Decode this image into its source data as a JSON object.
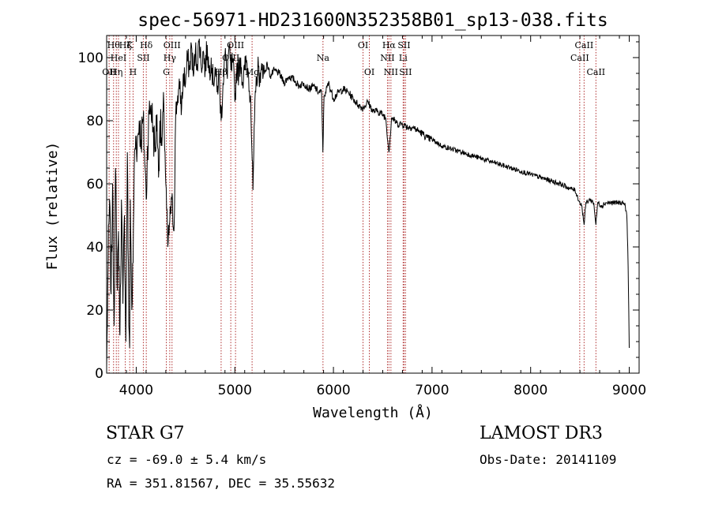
{
  "chart_data": {
    "type": "line",
    "title": "spec-56971-HD231600N352358B01_sp13-038.fits",
    "xlabel": "Wavelength (Å)",
    "ylabel": "Flux (relative)",
    "xlim": [
      3700,
      9100
    ],
    "ylim": [
      0,
      107
    ],
    "xticks": [
      4000,
      5000,
      6000,
      7000,
      8000,
      9000
    ],
    "yticks": [
      0,
      20,
      40,
      60,
      80,
      100
    ],
    "grid": false,
    "line_color": "#000000",
    "marker_color": "#b03030",
    "series": [
      {
        "name": "spectrum",
        "x": [
          3700,
          3715,
          3730,
          3745,
          3760,
          3775,
          3790,
          3805,
          3820,
          3835,
          3850,
          3865,
          3880,
          3895,
          3910,
          3925,
          3933,
          3940,
          3955,
          3968,
          3980,
          3995,
          4010,
          4030,
          4050,
          4070,
          4090,
          4101,
          4115,
          4130,
          4150,
          4170,
          4190,
          4210,
          4226,
          4240,
          4260,
          4280,
          4300,
          4320,
          4340,
          4360,
          4383,
          4400,
          4420,
          4440,
          4460,
          4480,
          4500,
          4520,
          4540,
          4560,
          4580,
          4600,
          4620,
          4640,
          4660,
          4680,
          4700,
          4720,
          4740,
          4760,
          4780,
          4800,
          4820,
          4840,
          4861,
          4880,
          4900,
          4920,
          4940,
          4960,
          4980,
          5000,
          5020,
          5040,
          5060,
          5080,
          5100,
          5120,
          5140,
          5160,
          5172,
          5184,
          5200,
          5220,
          5240,
          5260,
          5280,
          5300,
          5330,
          5360,
          5400,
          5450,
          5500,
          5550,
          5600,
          5650,
          5700,
          5750,
          5800,
          5850,
          5880,
          5893,
          5905,
          5920,
          5950,
          6000,
          6050,
          6100,
          6150,
          6200,
          6250,
          6300,
          6350,
          6400,
          6450,
          6500,
          6530,
          6563,
          6590,
          6620,
          6650,
          6700,
          6750,
          6800,
          6850,
          6900,
          6950,
          7000,
          7100,
          7200,
          7300,
          7400,
          7500,
          7600,
          7700,
          7800,
          7900,
          8000,
          8100,
          8200,
          8300,
          8400,
          8450,
          8498,
          8520,
          8542,
          8560,
          8600,
          8640,
          8662,
          8680,
          8720,
          8760,
          8800,
          8850,
          8900,
          8940,
          8960,
          8975,
          8985,
          8995,
          9000
        ],
        "y": [
          2,
          35,
          55,
          25,
          60,
          15,
          65,
          28,
          45,
          12,
          55,
          22,
          50,
          10,
          70,
          15,
          8,
          55,
          20,
          35,
          65,
          75,
          72,
          80,
          74,
          80,
          65,
          55,
          72,
          82,
          85,
          78,
          70,
          82,
          62,
          80,
          72,
          85,
          60,
          40,
          48,
          55,
          45,
          82,
          88,
          90,
          84,
          95,
          92,
          100,
          96,
          104,
          94,
          102,
          98,
          106,
          97,
          102,
          96,
          104,
          95,
          100,
          92,
          97,
          89,
          95,
          80,
          92,
          101,
          95,
          103,
          96,
          99,
          86,
          98,
          95,
          100,
          92,
          96,
          99,
          94,
          88,
          72,
          58,
          80,
          94,
          97,
          92,
          98,
          95,
          98,
          94,
          96,
          95,
          92,
          94,
          93,
          91,
          92,
          90,
          91,
          89,
          89,
          70,
          88,
          89,
          92,
          87,
          89,
          90,
          89,
          87,
          85,
          84,
          86,
          83,
          83,
          82,
          81,
          70,
          81,
          80,
          79,
          79,
          78,
          78,
          77,
          76,
          74.5,
          74,
          72,
          71,
          70,
          69,
          68,
          67,
          66,
          65,
          64,
          63,
          62,
          61,
          60,
          58.5,
          58,
          54,
          53,
          47,
          54,
          55,
          54,
          47,
          54,
          53,
          54,
          54,
          54,
          54,
          54,
          53,
          50,
          40,
          20,
          8
        ]
      }
    ],
    "line_markers": [
      {
        "wavelength": 3725,
        "label": "OII",
        "row": 3
      },
      {
        "wavelength": 3770,
        "label": "Hθ",
        "row": 1
      },
      {
        "wavelength": 3798,
        "label": "Hη",
        "row": 3
      },
      {
        "wavelength": 3820,
        "label": "HeI",
        "row": 2
      },
      {
        "wavelength": 3889,
        "label": "Hζ",
        "row": 1
      },
      {
        "wavelength": 3934,
        "label": "K",
        "row": 1
      },
      {
        "wavelength": 3968,
        "label": "H",
        "row": 3
      },
      {
        "wavelength": 4072,
        "label": "SII",
        "row": 2
      },
      {
        "wavelength": 4102,
        "label": "Hδ",
        "row": 1
      },
      {
        "wavelength": 4305,
        "label": "G",
        "row": 3
      },
      {
        "wavelength": 4340,
        "label": "Hγ",
        "row": 2
      },
      {
        "wavelength": 4363,
        "label": "OIII",
        "row": 1
      },
      {
        "wavelength": 4861,
        "label": "Hβ",
        "row": 3
      },
      {
        "wavelength": 4959,
        "label": "OIII",
        "row": 2
      },
      {
        "wavelength": 5007,
        "label": "OIII",
        "row": 1
      },
      {
        "wavelength": 5175,
        "label": "Mg",
        "row": 3
      },
      {
        "wavelength": 5894,
        "label": "Na",
        "row": 2
      },
      {
        "wavelength": 6300,
        "label": "OI",
        "row": 1
      },
      {
        "wavelength": 6364,
        "label": "OI",
        "row": 3
      },
      {
        "wavelength": 6548,
        "label": "NII",
        "row": 2
      },
      {
        "wavelength": 6563,
        "label": "Hα",
        "row": 1
      },
      {
        "wavelength": 6583,
        "label": "NII",
        "row": 3
      },
      {
        "wavelength": 6707,
        "label": "Li",
        "row": 2
      },
      {
        "wavelength": 6716,
        "label": "SII",
        "row": 1
      },
      {
        "wavelength": 6731,
        "label": "SII",
        "row": 3
      },
      {
        "wavelength": 8498,
        "label": "CaII",
        "row": 2
      },
      {
        "wavelength": 8542,
        "label": "CaII",
        "row": 1
      },
      {
        "wavelength": 8662,
        "label": "CaII",
        "row": 3
      }
    ]
  },
  "info": {
    "class_line": "STAR    G7",
    "cz_line": "cz = -69.0 ± 5.4 km/s",
    "radec_line": "RA = 351.81567, DEC =  35.55632",
    "survey": "LAMOST DR3",
    "obs_date": "Obs-Date: 20141109"
  }
}
